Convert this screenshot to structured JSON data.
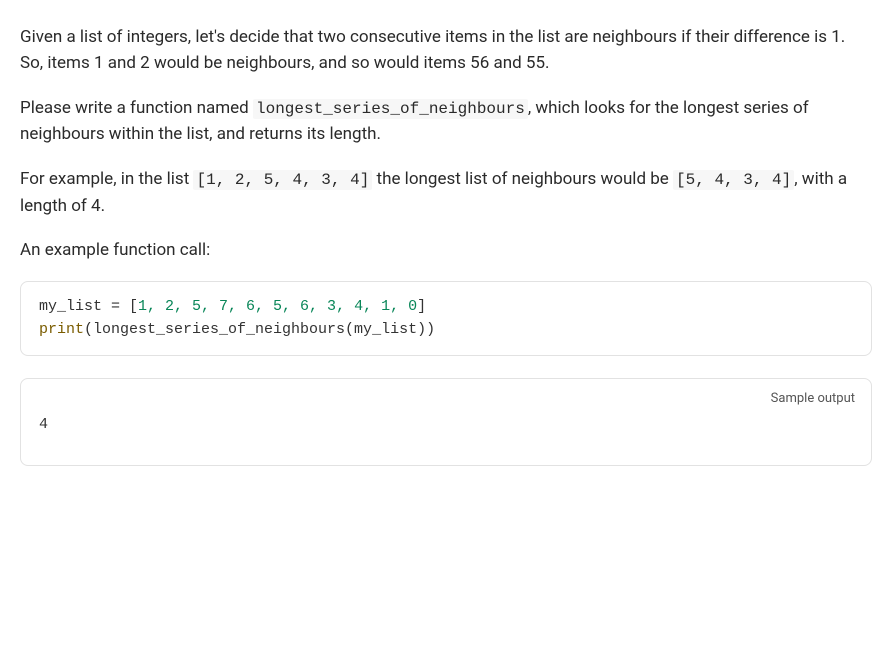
{
  "paragraphs": {
    "p1_a": "Given a list of integers, let's decide that two consecutive items in the list are neighbours if their difference is 1. So, items 1 and 2 would be neighbours, and so would items 56 and 55.",
    "p2_a": "Please write a function named ",
    "p2_code": "longest_series_of_neighbours",
    "p2_b": ", which looks for the longest series of neighbours within the list, and returns its length.",
    "p3_a": "For example, in the list ",
    "p3_code1": "[1, 2, 5, 4, 3, 4]",
    "p3_b": " the longest list of neighbours would be ",
    "p3_code2": "[5, 4, 3, 4]",
    "p3_c": ", with a length of 4.",
    "p4": "An example function call:"
  },
  "code": {
    "line1_a": "my_list = [",
    "line1_nums": "1, 2, 5, 7, 6, 5, 6, 3, 4, 1, 0",
    "line1_b": "]",
    "line2_a": "print",
    "line2_b": "(longest_series_of_neighbours(my_list))"
  },
  "output": {
    "label": "Sample output",
    "value": "4"
  }
}
